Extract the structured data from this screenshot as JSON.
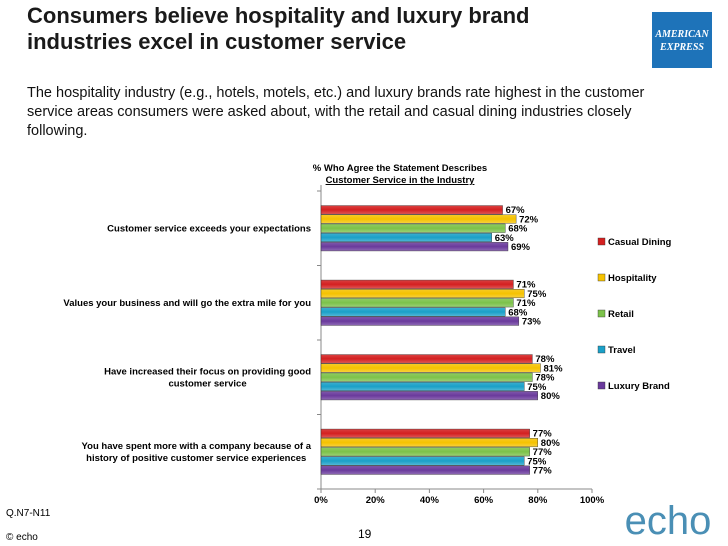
{
  "slide": {
    "title_line1": "Consumers believe hospitality and luxury brand",
    "title_line2": "industries excel in customer service",
    "subtitle": "The hospitality industry (e.g., hotels, motels, etc.) and luxury brands rate highest in the customer service areas consumers were asked about, with the retail and casual dining industries closely following.",
    "logo_text_line1": "AMERICAN",
    "logo_text_line2": "EXPRESS",
    "question_ref": "Q.N7-N11",
    "copyright": "© echo",
    "page_number": "19",
    "brand": "echo"
  },
  "chart_data": {
    "type": "bar",
    "orientation": "horizontal",
    "title_line1": "% Who Agree the Statement Describes",
    "title_line2": "Customer Service in the Industry",
    "xlim": [
      0,
      100
    ],
    "x_ticks": [
      "0%",
      "20%",
      "40%",
      "60%",
      "80%",
      "100%"
    ],
    "categories": [
      [
        "Customer service exceeds your expectations"
      ],
      [
        "Values your business and will go the extra mile for you"
      ],
      [
        "Have increased their focus on providing good",
        "customer service"
      ],
      [
        "You have spent more with a company because of a",
        "history of positive customer service experiences"
      ]
    ],
    "series": [
      {
        "name": "Casual Dining",
        "color": "#d42020",
        "values": [
          67,
          71,
          78,
          77
        ]
      },
      {
        "name": "Hospitality",
        "color": "#f5c200",
        "values": [
          72,
          75,
          81,
          80
        ]
      },
      {
        "name": "Retail",
        "color": "#7cc24a",
        "values": [
          68,
          71,
          78,
          77
        ]
      },
      {
        "name": "Travel",
        "color": "#1aa0c8",
        "values": [
          63,
          68,
          75,
          75
        ]
      },
      {
        "name": "Luxury Brand",
        "color": "#6a3a9c",
        "values": [
          69,
          73,
          80,
          77
        ]
      }
    ],
    "legend_position": "right"
  }
}
